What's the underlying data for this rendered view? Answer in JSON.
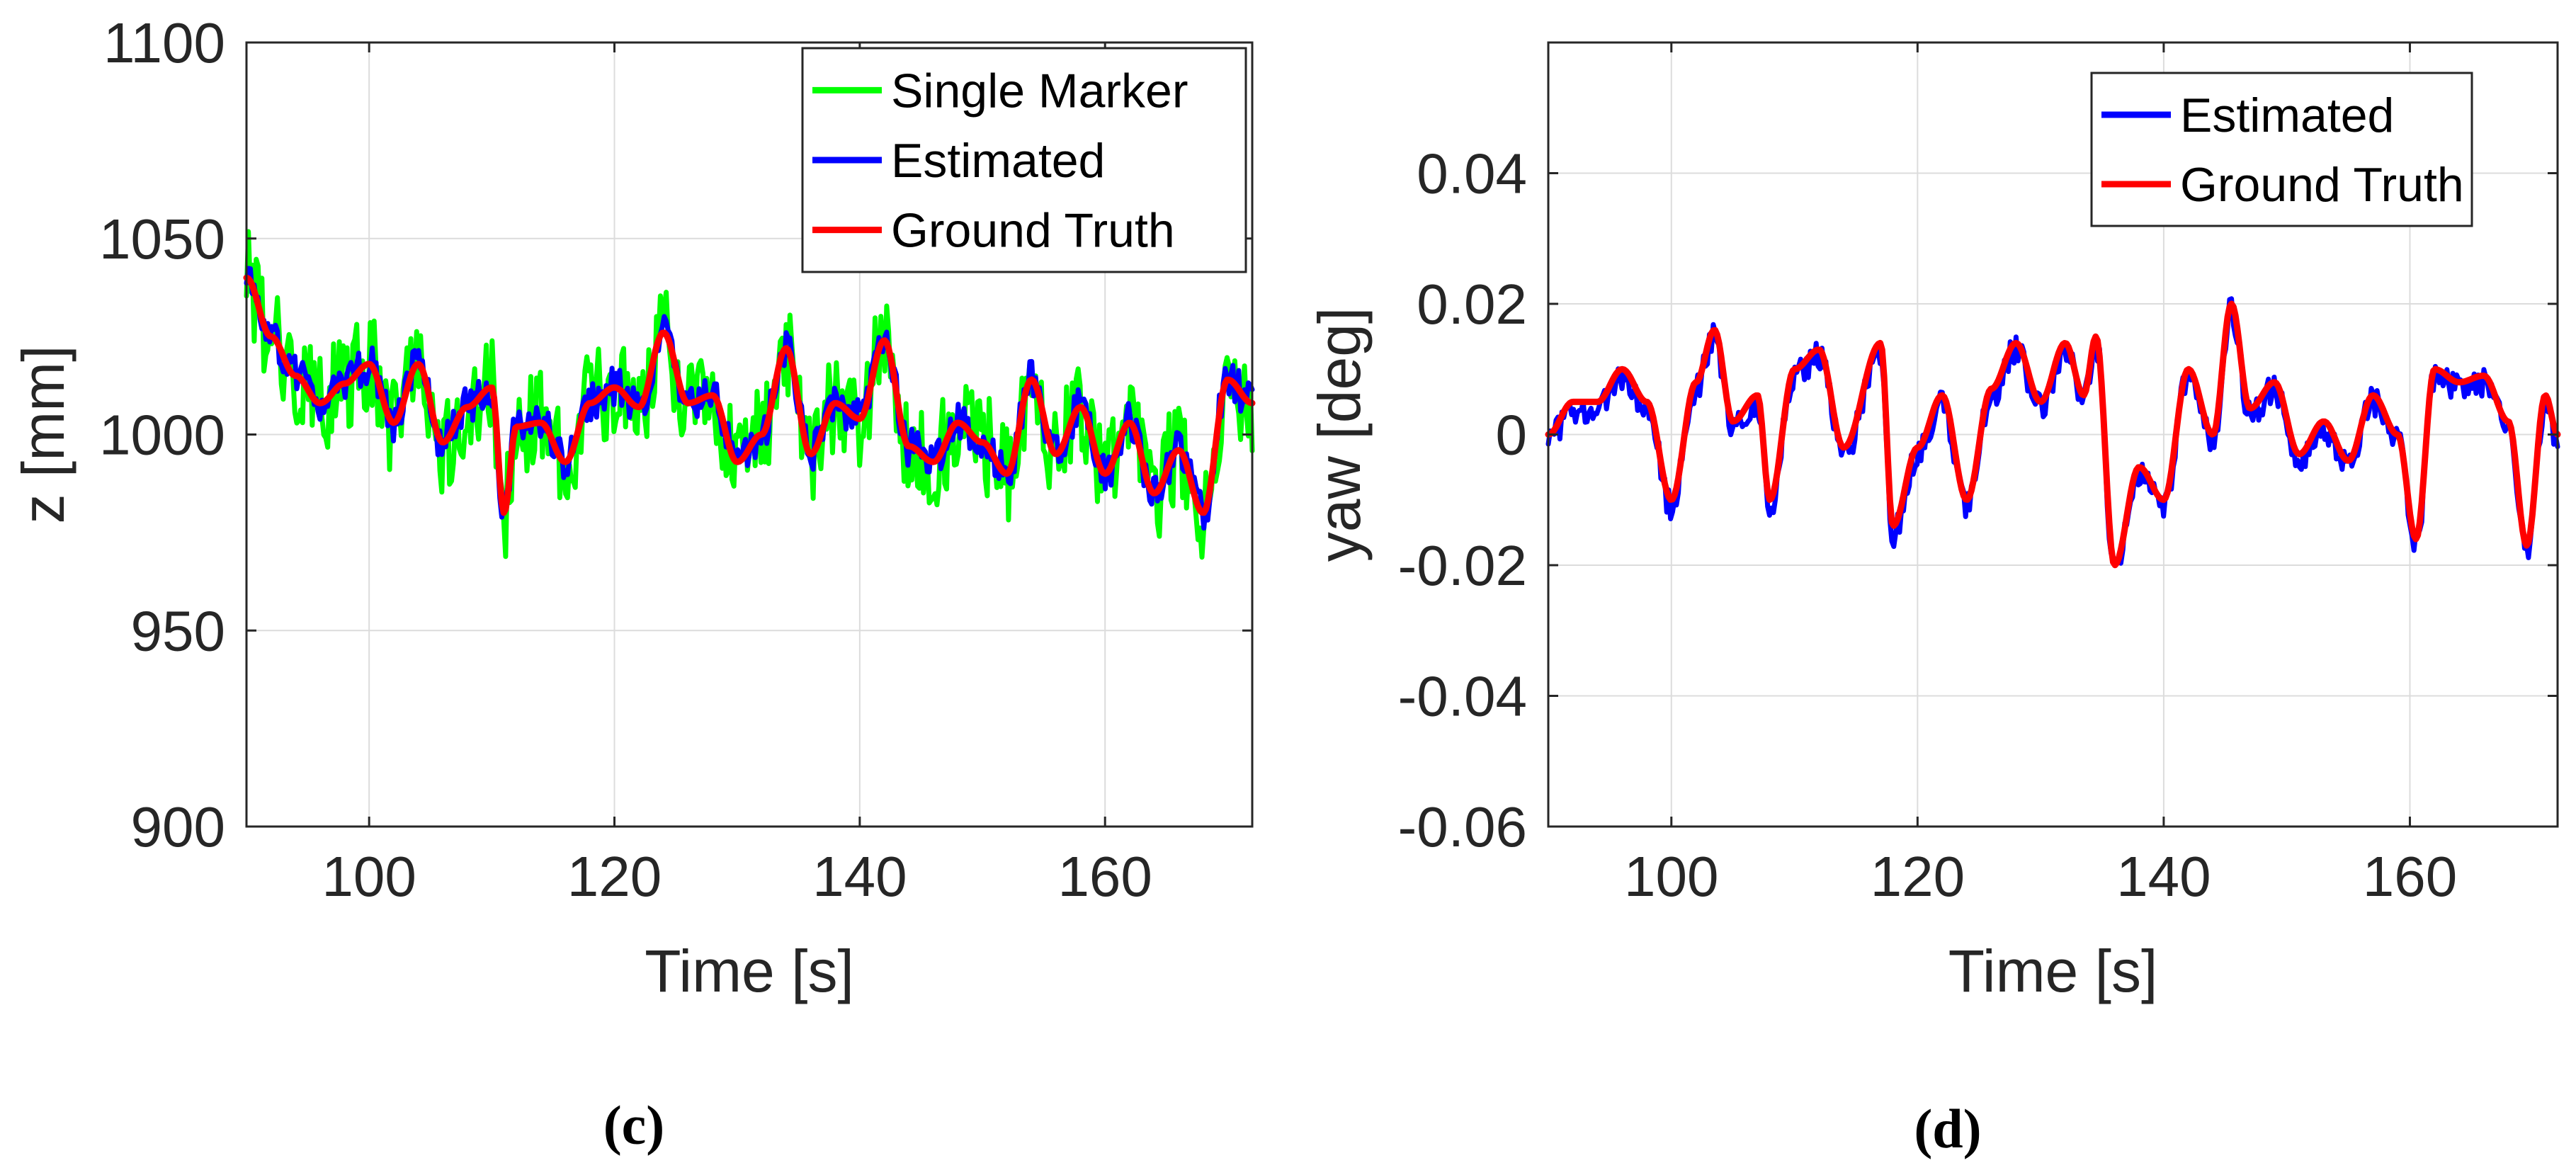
{
  "chart_data": [
    {
      "type": "line",
      "panel_label": "(c)",
      "xlabel": "Time [s]",
      "ylabel": "z [mm]",
      "xlim": [
        90,
        172
      ],
      "ylim": [
        900,
        1100
      ],
      "xticks": [
        100,
        120,
        140,
        160
      ],
      "yticks": [
        900,
        950,
        1000,
        1050,
        1100
      ],
      "grid": true,
      "legend_position": "top-right",
      "series": [
        {
          "name": "Single Marker",
          "color": "#00ff00",
          "noise": 13,
          "offset": 0
        },
        {
          "name": "Estimated",
          "color": "#0000ff",
          "noise": 5,
          "offset": 0
        },
        {
          "name": "Ground Truth",
          "color": "#ff0000",
          "noise": 0,
          "offset": 0
        }
      ],
      "base_series": {
        "x": [
          90,
          92,
          94,
          96,
          98,
          100,
          102,
          104,
          106,
          108,
          110,
          111,
          112,
          114,
          116,
          118,
          120,
          122,
          124,
          126,
          128,
          130,
          132,
          134,
          136,
          138,
          140,
          142,
          144,
          146,
          148,
          150,
          152,
          154,
          156,
          158,
          160,
          162,
          164,
          166,
          168,
          170,
          172
        ],
        "y": [
          1040,
          1025,
          1015,
          1008,
          1013,
          1018,
          1003,
          1018,
          998,
          1007,
          1012,
          980,
          1002,
          1003,
          993,
          1008,
          1012,
          1007,
          1026,
          1008,
          1010,
          993,
          1000,
          1022,
          995,
          1008,
          1004,
          1024,
          997,
          993,
          1003,
          998,
          990,
          1014,
          995,
          1007,
          990,
          1003,
          985,
          996,
          980,
          1014,
          1008
        ]
      }
    },
    {
      "type": "line",
      "panel_label": "(d)",
      "xlabel": "Time [s]",
      "ylabel": "yaw [deg]",
      "xlim": [
        90,
        172
      ],
      "ylim": [
        -0.06,
        0.06
      ],
      "xticks": [
        100,
        120,
        140,
        160
      ],
      "yticks": [
        -0.06,
        -0.04,
        -0.02,
        0,
        0.02,
        0.04
      ],
      "grid": true,
      "legend_position": "top-right",
      "series": [
        {
          "name": "Estimated",
          "color": "#0000ff",
          "noise": 0.0022,
          "offset": -0.001
        },
        {
          "name": "Ground Truth",
          "color": "#ff0000",
          "noise": 0,
          "offset": 0
        }
      ],
      "base_series": {
        "x": [
          90,
          92,
          94,
          96,
          98,
          100,
          102,
          103.5,
          105,
          107,
          108,
          110,
          112,
          114,
          117,
          118,
          120,
          122,
          124,
          126,
          128,
          130,
          132,
          133.5,
          134.5,
          136,
          138,
          140,
          142,
          144,
          145.5,
          147,
          149,
          151,
          153,
          155,
          157,
          159,
          160.5,
          162,
          164,
          166,
          168,
          169.5,
          171,
          172
        ],
        "y": [
          0.0,
          0.005,
          0.005,
          0.01,
          0.005,
          -0.01,
          0.008,
          0.016,
          0.002,
          0.006,
          -0.01,
          0.01,
          0.013,
          -0.002,
          0.014,
          -0.014,
          -0.002,
          0.006,
          -0.01,
          0.007,
          0.014,
          0.005,
          0.014,
          0.006,
          0.015,
          -0.02,
          -0.005,
          -0.01,
          0.01,
          0.0,
          0.02,
          0.004,
          0.008,
          -0.003,
          0.002,
          -0.004,
          0.006,
          0.0,
          -0.016,
          0.01,
          0.008,
          0.009,
          0.002,
          -0.017,
          0.006,
          0.0
        ]
      }
    }
  ]
}
